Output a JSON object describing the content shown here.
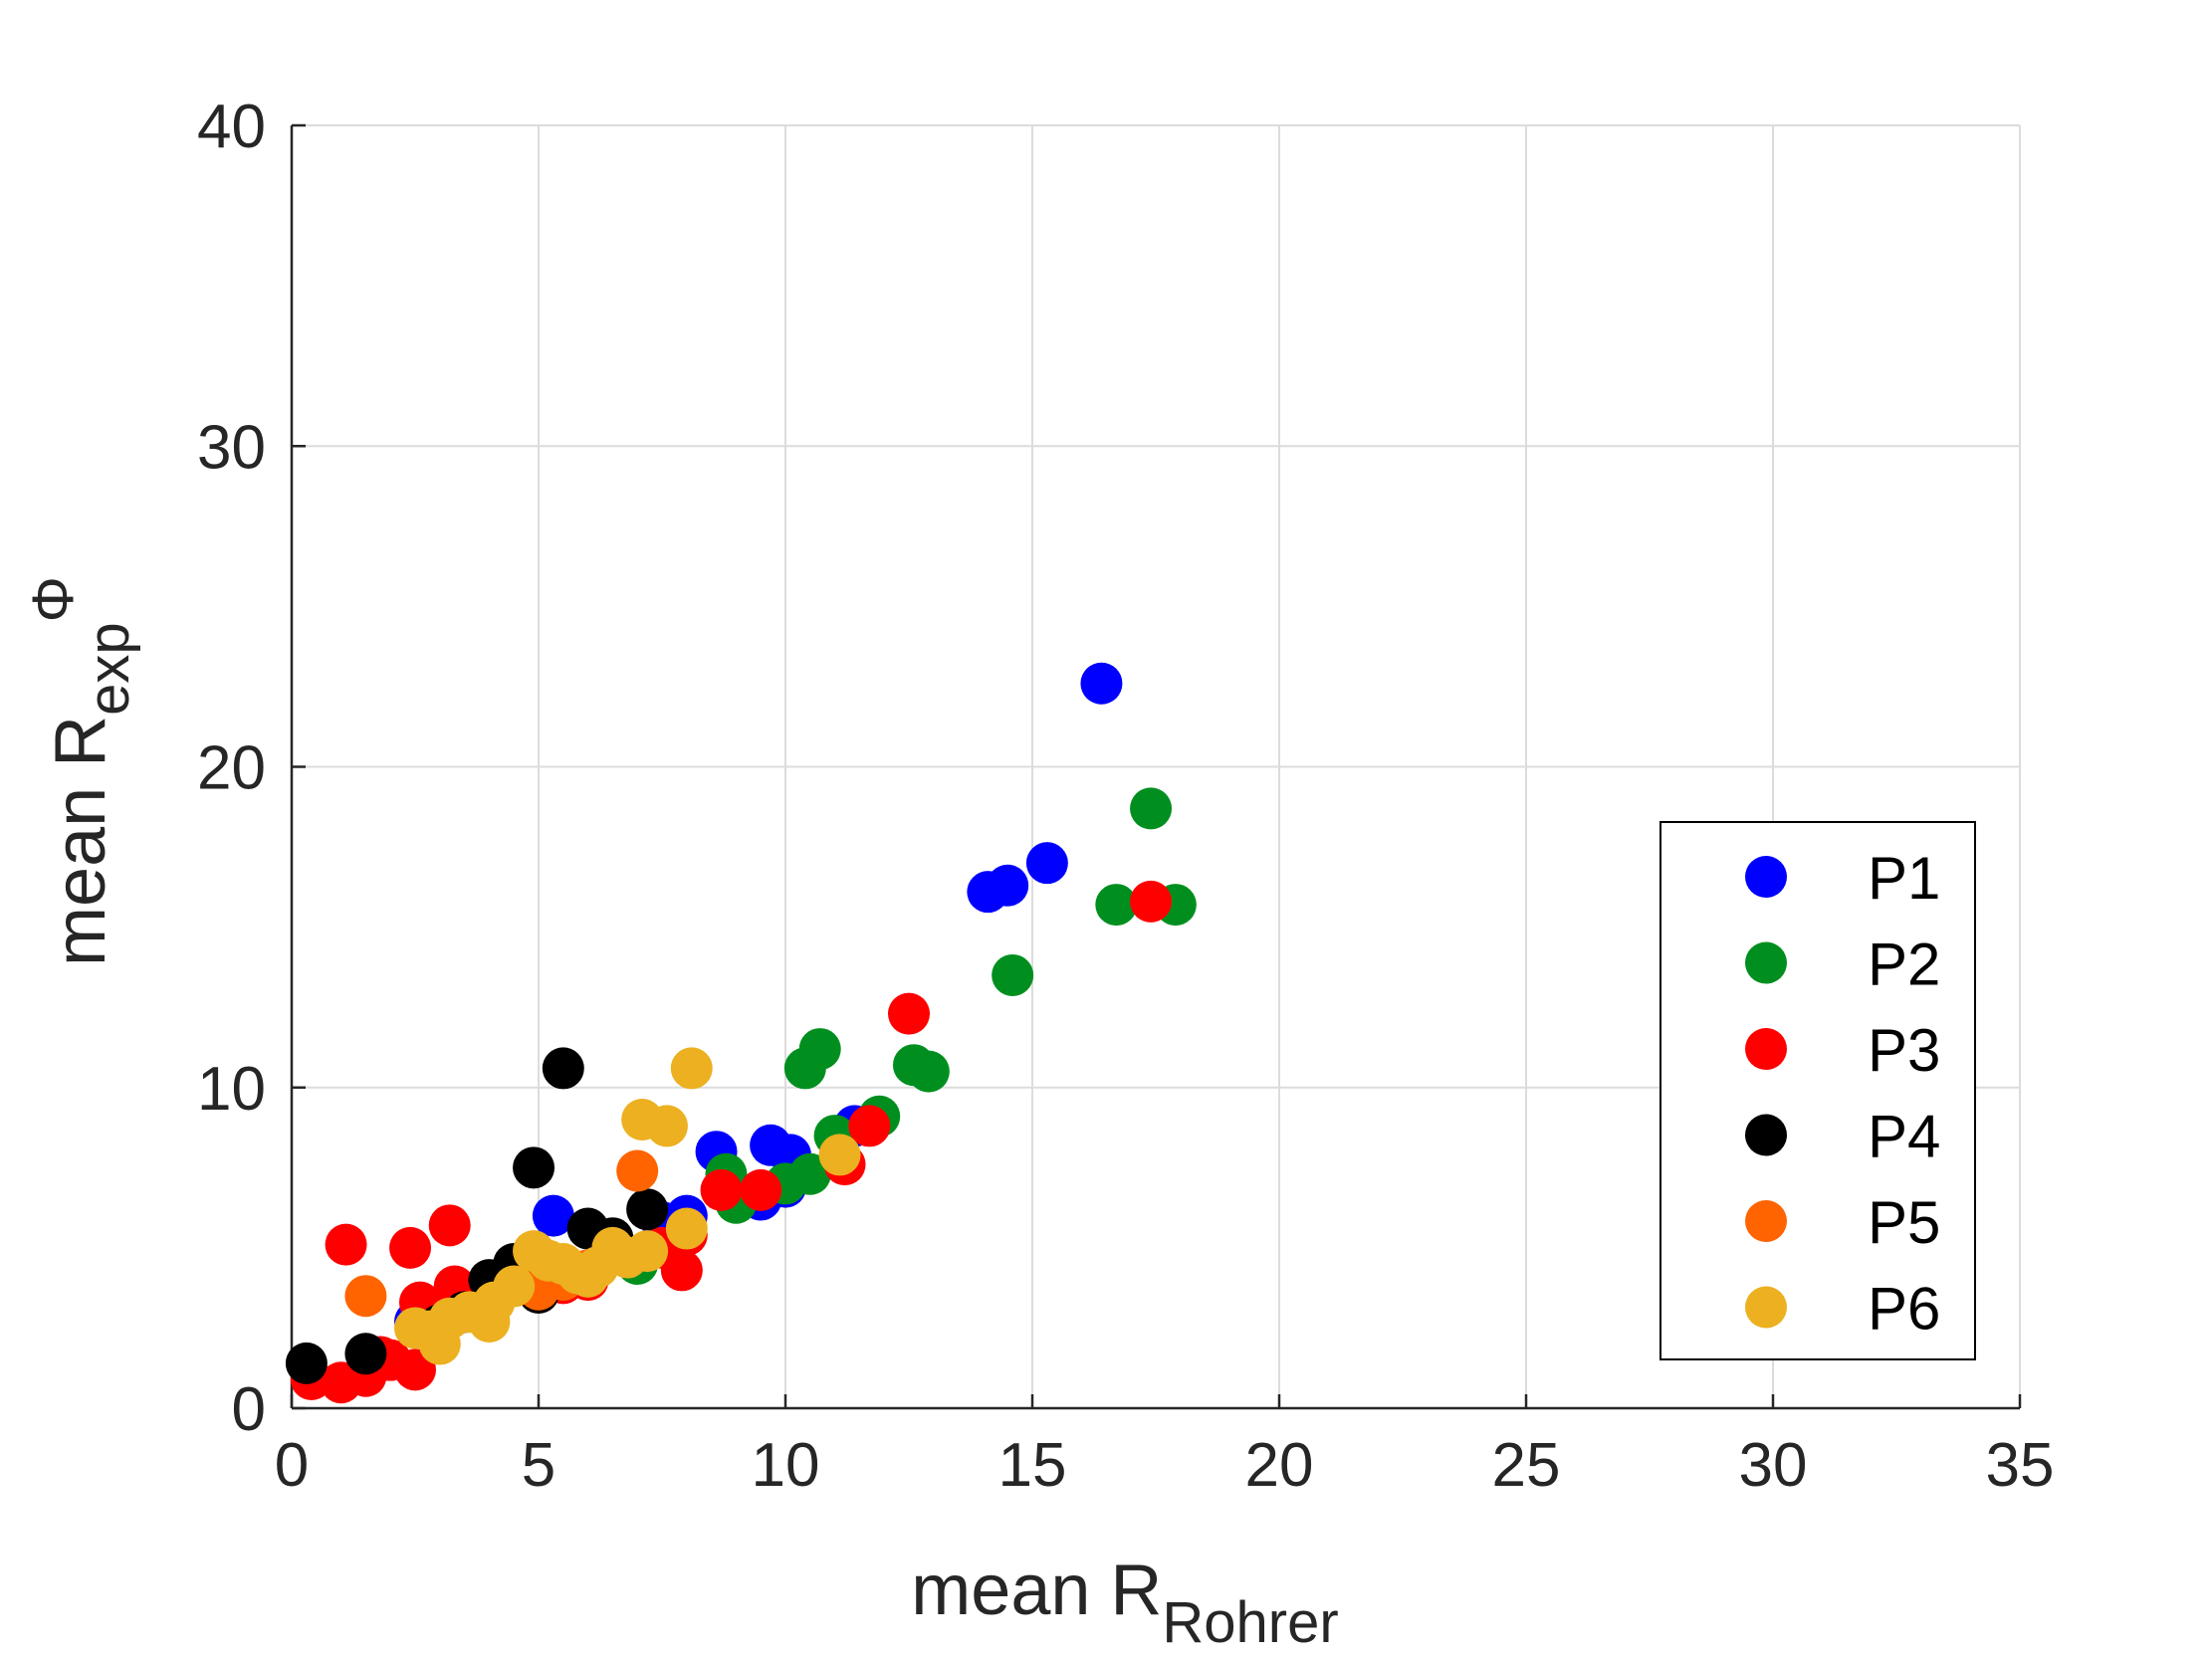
{
  "chart_data": {
    "type": "scatter",
    "title": "",
    "xlabel": {
      "main": "mean R",
      "sub": "Rohrer"
    },
    "ylabel": {
      "main": "mean R",
      "sub": "exp",
      "sup": "Φ"
    },
    "xlim": [
      0,
      35
    ],
    "ylim": [
      0,
      40
    ],
    "xticks": [
      0,
      5,
      10,
      15,
      20,
      25,
      30,
      35
    ],
    "yticks": [
      0,
      10,
      20,
      30,
      40
    ],
    "xtick_labels": [
      "0",
      "5",
      "10",
      "15",
      "20",
      "25",
      "30",
      "35"
    ],
    "ytick_labels": [
      "0",
      "10",
      "20",
      "30",
      "40"
    ],
    "grid": true,
    "legend_position": "lower-right",
    "series": [
      {
        "name": "P1",
        "color": "#0000ff",
        "points": [
          [
            16.4,
            22.6
          ],
          [
            15.3,
            17.0
          ],
          [
            14.1,
            16.1
          ],
          [
            14.5,
            16.3
          ],
          [
            9.7,
            8.2
          ],
          [
            10.1,
            7.9
          ],
          [
            8.6,
            8.0
          ],
          [
            11.4,
            8.8
          ],
          [
            5.3,
            6.0
          ],
          [
            8.0,
            6.0
          ],
          [
            9.5,
            6.5
          ],
          [
            10.0,
            6.9
          ],
          [
            7.5,
            5.8
          ],
          [
            6.5,
            5.2
          ],
          [
            5.0,
            4.5
          ],
          [
            3.5,
            3.5
          ],
          [
            2.5,
            2.7
          ]
        ]
      },
      {
        "name": "P2",
        "color": "#008f1f",
        "points": [
          [
            17.4,
            18.7
          ],
          [
            16.7,
            15.7
          ],
          [
            17.9,
            15.7
          ],
          [
            14.6,
            13.5
          ],
          [
            10.4,
            10.6
          ],
          [
            10.7,
            11.2
          ],
          [
            12.6,
            10.7
          ],
          [
            12.9,
            10.5
          ],
          [
            11.9,
            9.1
          ],
          [
            11.0,
            8.5
          ],
          [
            10.5,
            7.3
          ],
          [
            10.0,
            7.0
          ],
          [
            8.8,
            7.3
          ],
          [
            9.0,
            6.4
          ],
          [
            7.0,
            4.5
          ],
          [
            5.5,
            4.0
          ],
          [
            4.0,
            3.2
          ]
        ]
      },
      {
        "name": "P3",
        "color": "#ff0000",
        "points": [
          [
            17.4,
            15.8
          ],
          [
            12.5,
            12.3
          ],
          [
            11.7,
            8.8
          ],
          [
            11.2,
            7.6
          ],
          [
            9.5,
            6.8
          ],
          [
            8.7,
            6.8
          ],
          [
            7.9,
            4.3
          ],
          [
            8.0,
            5.4
          ],
          [
            7.5,
            5.0
          ],
          [
            3.2,
            5.7
          ],
          [
            1.1,
            5.1
          ],
          [
            2.4,
            5.0
          ],
          [
            3.3,
            3.8
          ],
          [
            2.6,
            3.3
          ],
          [
            3.0,
            3.0
          ],
          [
            2.0,
            1.5
          ],
          [
            1.5,
            1.0
          ],
          [
            1.0,
            0.8
          ],
          [
            0.4,
            0.9
          ],
          [
            2.5,
            1.2
          ],
          [
            1.8,
            1.6
          ],
          [
            5.5,
            3.9
          ],
          [
            6.0,
            4.0
          ]
        ]
      },
      {
        "name": "P4",
        "color": "#000000",
        "points": [
          [
            5.5,
            10.6
          ],
          [
            4.9,
            7.5
          ],
          [
            7.2,
            6.2
          ],
          [
            6.0,
            5.6
          ],
          [
            6.5,
            5.3
          ],
          [
            4.5,
            4.5
          ],
          [
            5.0,
            3.6
          ],
          [
            4.0,
            4.0
          ],
          [
            3.5,
            3.0
          ],
          [
            3.0,
            2.6
          ],
          [
            1.5,
            1.7
          ],
          [
            0.3,
            1.4
          ]
        ]
      },
      {
        "name": "P5",
        "color": "#ff6400",
        "points": [
          [
            7.0,
            7.4
          ],
          [
            1.5,
            3.5
          ],
          [
            5.5,
            4.0
          ],
          [
            6.0,
            4.3
          ],
          [
            5.0,
            3.7
          ]
        ]
      },
      {
        "name": "P6",
        "color": "#ecb020",
        "points": [
          [
            8.1,
            10.6
          ],
          [
            7.1,
            9.0
          ],
          [
            7.6,
            8.8
          ],
          [
            11.1,
            7.9
          ],
          [
            8.0,
            5.6
          ],
          [
            7.2,
            4.9
          ],
          [
            6.5,
            5.0
          ],
          [
            6.2,
            4.4
          ],
          [
            5.8,
            4.2
          ],
          [
            5.2,
            4.6
          ],
          [
            4.9,
            4.9
          ],
          [
            4.5,
            3.8
          ],
          [
            4.1,
            3.3
          ],
          [
            3.6,
            3.0
          ],
          [
            3.2,
            2.8
          ],
          [
            2.8,
            2.4
          ],
          [
            2.5,
            2.5
          ],
          [
            3.0,
            2.0
          ],
          [
            4.0,
            2.7
          ],
          [
            5.5,
            4.5
          ],
          [
            6.0,
            4.1
          ],
          [
            6.8,
            4.7
          ]
        ]
      }
    ]
  }
}
